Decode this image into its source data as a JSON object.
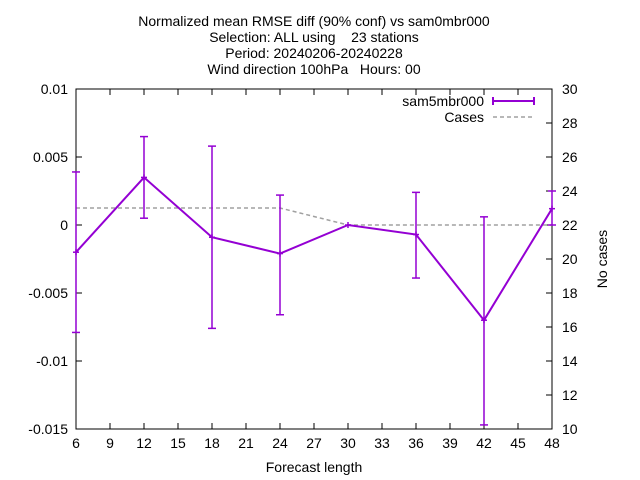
{
  "chart_data": {
    "type": "line",
    "title_lines": [
      "Normalized mean RMSE diff (90% conf) vs sam0mbr000",
      "Selection: ALL using    23 stations",
      "Period: 20240206-20240228",
      "Wind direction 100hPa   Hours: 00"
    ],
    "xlabel": "Forecast length",
    "ylabel": "",
    "y2label": "No cases",
    "xlim": [
      6,
      48
    ],
    "ylim": [
      -0.015,
      0.01
    ],
    "y2lim": [
      10,
      30
    ],
    "xticks": [
      6,
      9,
      12,
      15,
      18,
      21,
      24,
      27,
      30,
      33,
      36,
      39,
      42,
      45,
      48
    ],
    "yticks": [
      0.01,
      0.005,
      0,
      -0.005,
      -0.01,
      -0.015
    ],
    "ytick_labels": [
      "0.01",
      "0.005",
      "0",
      "-0.005",
      "-0.01",
      "-0.015"
    ],
    "y2ticks": [
      30,
      28,
      26,
      24,
      22,
      20,
      18,
      16,
      14,
      12,
      10
    ],
    "grid": false,
    "legend_position": "top-right",
    "series": [
      {
        "name": "sam5mbr000",
        "style": "errorbar-line",
        "color": "#9400d3",
        "x": [
          6,
          12,
          18,
          24,
          30,
          36,
          42,
          48
        ],
        "y": [
          -0.002,
          0.0035,
          -0.0009,
          -0.0021,
          0.0,
          -0.0007,
          -0.007,
          0.0012
        ],
        "err_low": [
          -0.0079,
          0.0005,
          -0.0076,
          -0.0066,
          0.0,
          -0.0039,
          -0.0147,
          0.0
        ],
        "err_high": [
          0.0039,
          0.0065,
          0.0058,
          0.0022,
          0.0,
          0.0024,
          0.0006,
          0.0025
        ]
      },
      {
        "name": "Cases",
        "style": "dashed",
        "axis": "y2",
        "color": "#a0a0a0",
        "x": [
          6,
          12,
          18,
          24,
          30,
          36,
          42,
          48
        ],
        "y": [
          23,
          23,
          23,
          23,
          22,
          22,
          22,
          22
        ]
      }
    ]
  }
}
